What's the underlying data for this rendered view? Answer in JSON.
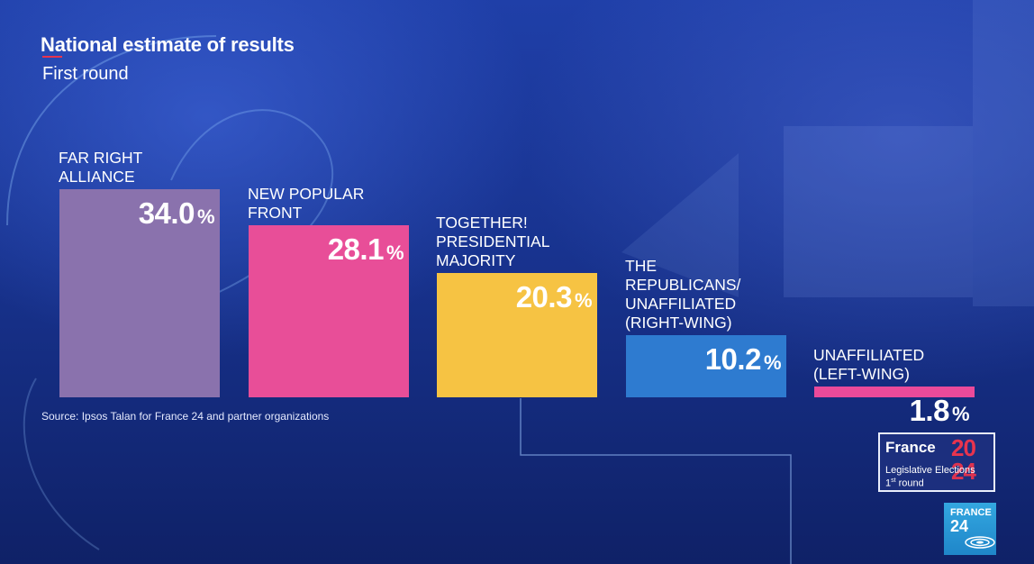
{
  "header": {
    "title": "National estimate of results",
    "subtitle": "First round"
  },
  "source": "Source: Ipsos Talan for France 24 and partner organizations",
  "election_box": {
    "brand": "France",
    "year_top": "20",
    "year_bottom": "24",
    "line1": "Legislative Elections",
    "line2_prefix": "1",
    "line2_sup": "st",
    "line2_suffix": " round"
  },
  "logo": {
    "line1": "FRANCE",
    "line2": "24"
  },
  "colors": {
    "accent": "#e8344e",
    "far_right": "#8a72ad",
    "new_popular_front": "#e84e98",
    "together": "#f6c343",
    "republicans": "#2e7bd0",
    "unaffiliated_left": "#ea4a9a"
  },
  "chart_data": {
    "type": "bar",
    "title": "National estimate of results",
    "subtitle": "First round",
    "categories": [
      "FAR RIGHT ALLIANCE",
      "NEW POPULAR FRONT",
      "TOGETHER! PRESIDENTIAL MAJORITY",
      "THE REPUBLICANS/ UNAFFILIATED (RIGHT-WING)",
      "UNAFFILIATED (LEFT-WING)"
    ],
    "category_lines": [
      [
        "FAR RIGHT",
        "ALLIANCE"
      ],
      [
        "NEW POPULAR",
        "FRONT"
      ],
      [
        "TOGETHER!",
        "PRESIDENTIAL",
        "MAJORITY"
      ],
      [
        "THE",
        "REPUBLICANS/",
        "UNAFFILIATED",
        "(RIGHT-WING)"
      ],
      [
        "UNAFFILIATED",
        "(LEFT-WING)"
      ]
    ],
    "values": [
      34.0,
      28.1,
      20.3,
      10.2,
      1.8
    ],
    "value_labels": [
      "34.0",
      "28.1",
      "20.3",
      "10.2",
      "1.8"
    ],
    "unit": "%",
    "colors": [
      "#8a72ad",
      "#e84e98",
      "#f6c343",
      "#2e7bd0",
      "#ea4a9a"
    ],
    "ylim": [
      0,
      34.0
    ],
    "grid": false,
    "legend": "none"
  }
}
